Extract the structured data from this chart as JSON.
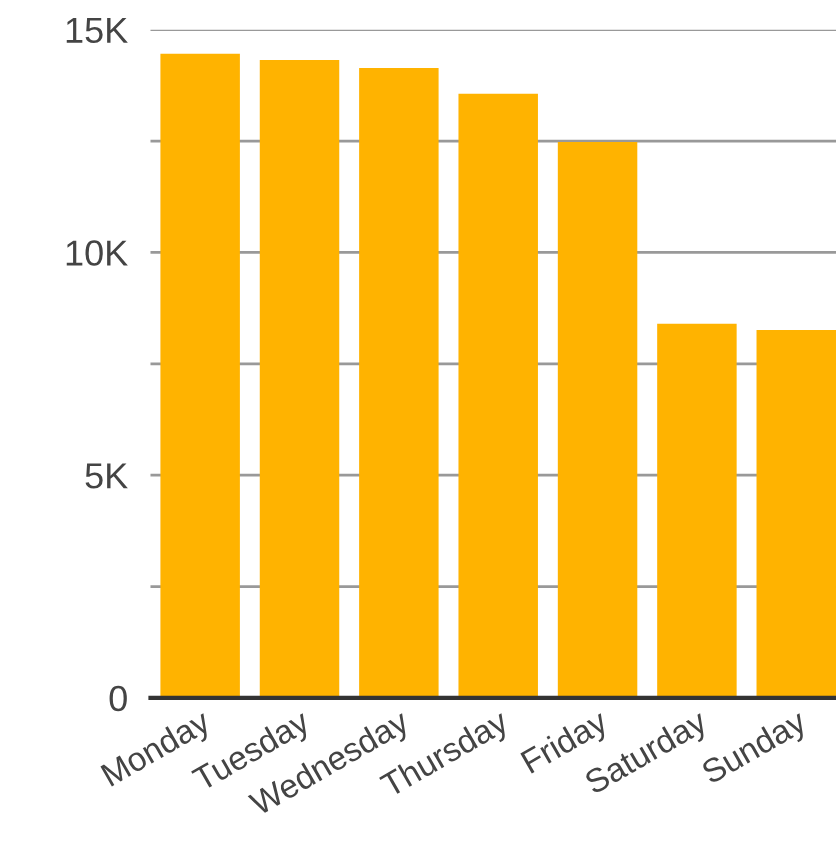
{
  "chart_data": {
    "type": "bar",
    "categories": [
      "Monday",
      "Tuesday",
      "Wednesday",
      "Thursday",
      "Friday",
      "Saturday",
      "Sunday"
    ],
    "values": [
      14460,
      14320,
      14140,
      13560,
      12480,
      8400,
      8260
    ],
    "color": "#ffb300",
    "ylim": [
      0,
      15000
    ],
    "yticks": [
      {
        "value": 0,
        "label": "0"
      },
      {
        "value": 2500,
        "label": null
      },
      {
        "value": 5000,
        "label": "5K"
      },
      {
        "value": 7500,
        "label": null
      },
      {
        "value": 10000,
        "label": "10K"
      },
      {
        "value": 12500,
        "label": null
      },
      {
        "value": 15000,
        "label": "15K"
      }
    ],
    "grid": "y",
    "legend": false
  }
}
